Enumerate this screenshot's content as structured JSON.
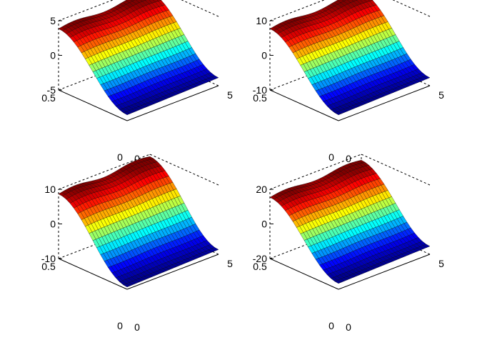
{
  "colormap": [
    "#00008f",
    "#0000ff",
    "#0080ff",
    "#00ffff",
    "#80ff80",
    "#ffff00",
    "#ff8000",
    "#ff0000",
    "#800000"
  ],
  "chart_data": [
    {
      "type": "surface",
      "title": "",
      "xlim": [
        0,
        5
      ],
      "ylim": [
        0,
        0.5
      ],
      "zlim": [
        -5,
        5
      ],
      "x_ticks": [
        "0",
        "5"
      ],
      "y_ticks": [
        "0",
        "0.5"
      ],
      "z_ticks": [
        "-5",
        "0",
        "5"
      ],
      "amplitude": 4,
      "grid": "off",
      "box": "on"
    },
    {
      "type": "surface",
      "title": "",
      "xlim": [
        0,
        5
      ],
      "ylim": [
        0,
        0.5
      ],
      "zlim": [
        -10,
        10
      ],
      "x_ticks": [
        "0",
        "5"
      ],
      "y_ticks": [
        "0",
        "0.5"
      ],
      "z_ticks": [
        "-10",
        "0",
        "10"
      ],
      "amplitude": 8,
      "grid": "off",
      "box": "on"
    },
    {
      "type": "surface",
      "title": "",
      "xlim": [
        0,
        5
      ],
      "ylim": [
        0,
        0.5
      ],
      "zlim": [
        -10,
        10
      ],
      "x_ticks": [
        "0",
        "5"
      ],
      "y_ticks": [
        "0",
        "0.5"
      ],
      "z_ticks": [
        "-10",
        "0",
        "10"
      ],
      "amplitude": 9,
      "grid": "off",
      "box": "on"
    },
    {
      "type": "surface",
      "title": "",
      "xlim": [
        0,
        5
      ],
      "ylim": [
        0,
        0.5
      ],
      "zlim": [
        -20,
        20
      ],
      "x_ticks": [
        "0",
        "5"
      ],
      "y_ticks": [
        "0",
        "0.5"
      ],
      "z_ticks": [
        "-20",
        "0",
        "20"
      ],
      "amplitude": 16,
      "grid": "off",
      "box": "on"
    }
  ]
}
